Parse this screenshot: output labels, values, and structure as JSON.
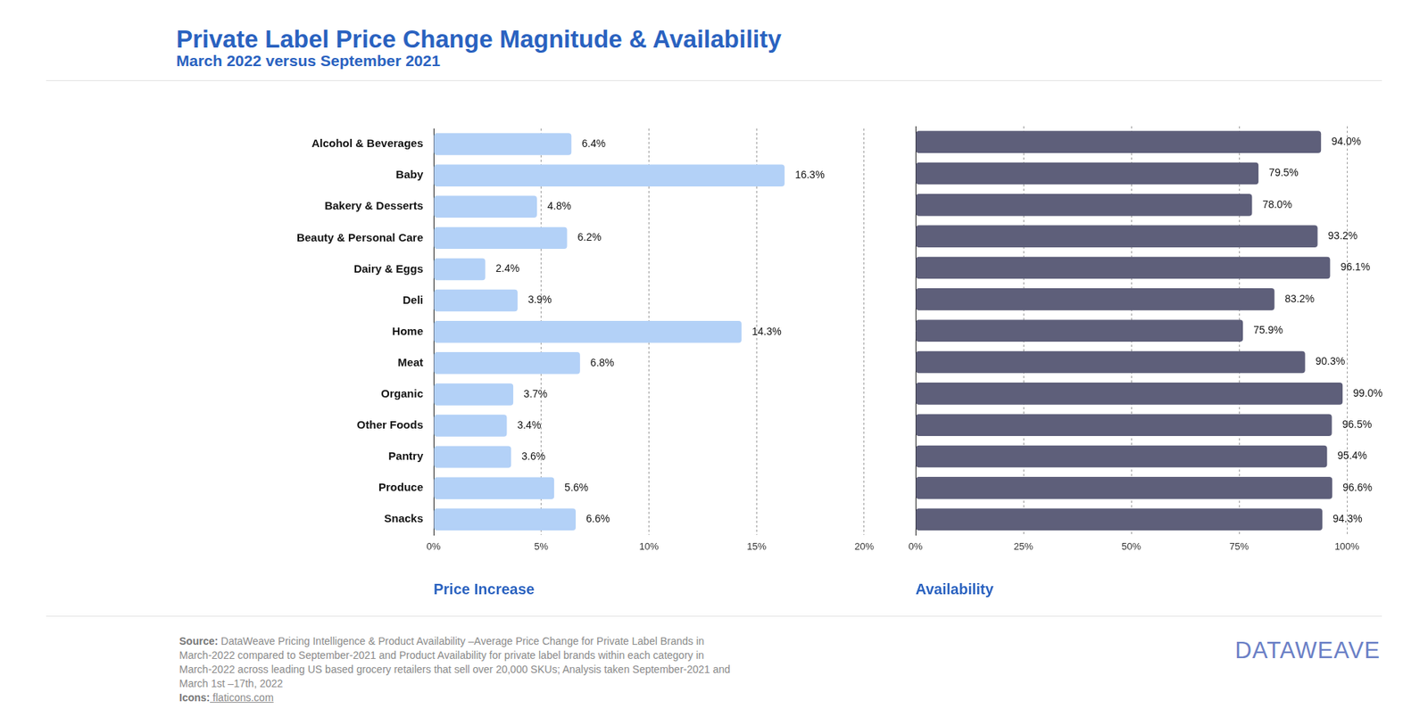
{
  "title": "Private Label Price Change Magnitude & Availability",
  "subtitle": "March 2022 versus September 2021",
  "source_label": "Source:",
  "source": "DataWeave Pricing Intelligence & Product Availability –Average Price Change for Private Label Brands in March-2022 compared to September-2021 and Product Availability for private label brands within each category in March-2022 across leading US based grocery retailers that sell over 20,000 SKUs; Analysis taken September-2021 and March 1st –17th, 2022",
  "icons_label": "Icons:",
  "icons": "flaticons.com",
  "logo": "DATAWEAVE",
  "chart_data": [
    {
      "type": "bar",
      "orientation": "horizontal",
      "xlabel": "Price Increase",
      "categories": [
        "Alcohol & Beverages",
        "Baby",
        "Bakery & Desserts",
        "Beauty & Personal Care",
        "Dairy & Eggs",
        "Deli",
        "Home",
        "Meat",
        "Organic",
        "Other Foods",
        "Pantry",
        "Produce",
        "Snacks"
      ],
      "values": [
        6.4,
        16.3,
        4.8,
        6.2,
        2.4,
        3.9,
        14.3,
        6.8,
        3.7,
        3.4,
        3.6,
        5.6,
        6.6
      ],
      "value_labels": [
        "6.4%",
        "16.3%",
        "4.8%",
        "6.2%",
        "2.4%",
        "3.9%",
        "14.3%",
        "6.8%",
        "3.7%",
        "3.4%",
        "3.6%",
        "5.6%",
        "6.6%"
      ],
      "color": "#b3d1f7",
      "xlim": [
        0,
        20
      ],
      "xticks": [
        {
          "value": 0,
          "label": "0%"
        },
        {
          "value": 5,
          "label": "5%"
        },
        {
          "value": 10,
          "label": "10%"
        },
        {
          "value": 15,
          "label": "15%"
        },
        {
          "value": 20,
          "label": "20%"
        }
      ],
      "grid": true,
      "data_labels": true
    },
    {
      "type": "bar",
      "orientation": "horizontal",
      "xlabel": "Availability",
      "categories": [
        "Alcohol & Beverages",
        "Baby",
        "Bakery & Desserts",
        "Beauty & Personal Care",
        "Dairy & Eggs",
        "Deli",
        "Home",
        "Meat",
        "Organic",
        "Other Foods",
        "Pantry",
        "Produce",
        "Snacks"
      ],
      "values": [
        94.0,
        79.5,
        78.0,
        93.2,
        96.1,
        83.2,
        75.9,
        90.3,
        99.0,
        96.5,
        95.4,
        96.6,
        94.3
      ],
      "value_labels": [
        "94.0%",
        "79.5%",
        "78.0%",
        "93.2%",
        "96.1%",
        "83.2%",
        "75.9%",
        "90.3%",
        "99.0%",
        "96.5%",
        "95.4%",
        "96.6%",
        "94.3%"
      ],
      "color": "#5e5f7a",
      "xlim": [
        0,
        100
      ],
      "xticks": [
        {
          "value": 0,
          "label": "0%"
        },
        {
          "value": 25,
          "label": "25%"
        },
        {
          "value": 50,
          "label": "50%"
        },
        {
          "value": 75,
          "label": "75%"
        },
        {
          "value": 100,
          "label": "100%"
        }
      ],
      "grid": true,
      "data_labels": true,
      "tick_labels": "x"
    }
  ]
}
